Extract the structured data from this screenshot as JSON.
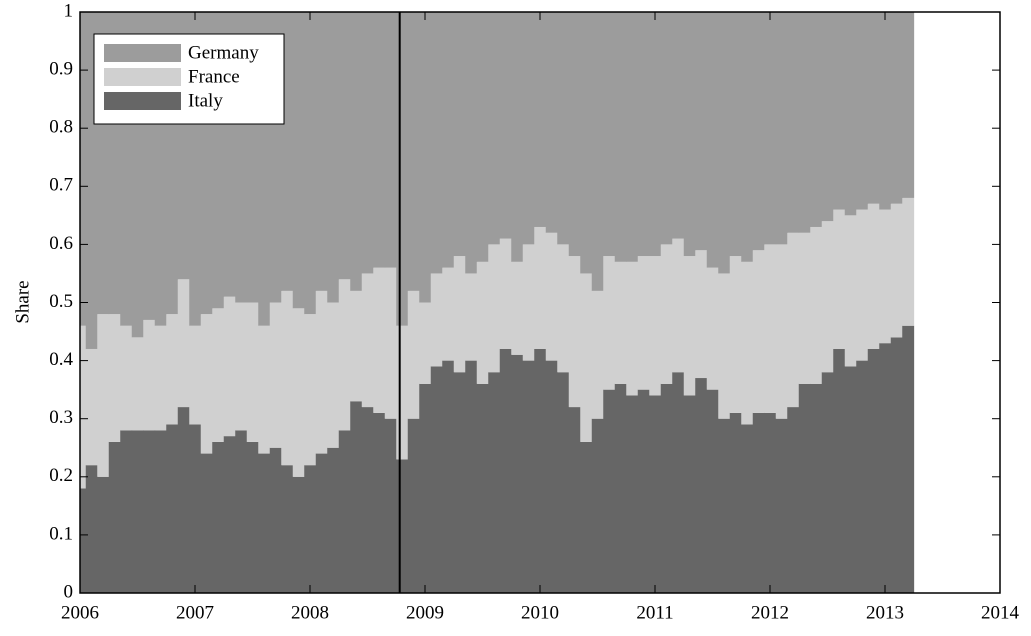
{
  "chart_data": {
    "type": "stacked_bar",
    "y_label": "Share",
    "x": [
      2006.0,
      2006.1,
      2006.2,
      2006.3,
      2006.4,
      2006.5,
      2006.6,
      2006.7,
      2006.8,
      2006.9,
      2007.0,
      2007.1,
      2007.2,
      2007.3,
      2007.4,
      2007.5,
      2007.6,
      2007.7,
      2007.8,
      2007.9,
      2008.0,
      2008.1,
      2008.2,
      2008.3,
      2008.4,
      2008.5,
      2008.6,
      2008.7,
      2008.8,
      2008.9,
      2009.0,
      2009.1,
      2009.2,
      2009.3,
      2009.4,
      2009.5,
      2009.6,
      2009.7,
      2009.8,
      2009.9,
      2010.0,
      2010.1,
      2010.2,
      2010.3,
      2010.4,
      2010.5,
      2010.6,
      2010.7,
      2010.8,
      2010.9,
      2011.0,
      2011.1,
      2011.2,
      2011.3,
      2011.4,
      2011.5,
      2011.6,
      2011.7,
      2011.8,
      2011.9,
      2012.0,
      2012.1,
      2012.2,
      2012.3,
      2012.4,
      2012.5,
      2012.6,
      2012.7,
      2012.8,
      2012.9,
      2013.0,
      2013.1,
      2013.2
    ],
    "series": [
      {
        "name": "Germany",
        "color": "#9c9c9c",
        "values": [
          0.54,
          0.58,
          0.52,
          0.52,
          0.54,
          0.56,
          0.53,
          0.54,
          0.52,
          0.46,
          0.54,
          0.52,
          0.51,
          0.49,
          0.5,
          0.5,
          0.54,
          0.5,
          0.48,
          0.51,
          0.52,
          0.48,
          0.5,
          0.46,
          0.48,
          0.45,
          0.44,
          0.44,
          0.54,
          0.48,
          0.5,
          0.45,
          0.44,
          0.42,
          0.45,
          0.43,
          0.4,
          0.39,
          0.43,
          0.4,
          0.37,
          0.38,
          0.4,
          0.42,
          0.45,
          0.48,
          0.42,
          0.43,
          0.43,
          0.42,
          0.42,
          0.4,
          0.39,
          0.42,
          0.41,
          0.44,
          0.45,
          0.42,
          0.43,
          0.41,
          0.4,
          0.4,
          0.38,
          0.38,
          0.37,
          0.36,
          0.34,
          0.35,
          0.34,
          0.33,
          0.34,
          0.33,
          0.32
        ]
      },
      {
        "name": "France",
        "color": "#d0d0d0",
        "values": [
          0.28,
          0.2,
          0.28,
          0.22,
          0.18,
          0.16,
          0.19,
          0.18,
          0.19,
          0.22,
          0.17,
          0.24,
          0.23,
          0.24,
          0.22,
          0.24,
          0.22,
          0.25,
          0.3,
          0.29,
          0.26,
          0.28,
          0.25,
          0.26,
          0.19,
          0.23,
          0.25,
          0.26,
          0.23,
          0.22,
          0.14,
          0.16,
          0.16,
          0.2,
          0.15,
          0.21,
          0.22,
          0.19,
          0.16,
          0.2,
          0.21,
          0.22,
          0.22,
          0.26,
          0.29,
          0.22,
          0.23,
          0.21,
          0.23,
          0.23,
          0.24,
          0.24,
          0.23,
          0.24,
          0.22,
          0.21,
          0.25,
          0.27,
          0.28,
          0.28,
          0.29,
          0.3,
          0.3,
          0.26,
          0.27,
          0.26,
          0.24,
          0.26,
          0.26,
          0.25,
          0.23,
          0.23,
          0.22
        ]
      },
      {
        "name": "Italy",
        "color": "#666666",
        "values": [
          0.18,
          0.22,
          0.2,
          0.26,
          0.28,
          0.28,
          0.28,
          0.28,
          0.29,
          0.32,
          0.29,
          0.24,
          0.26,
          0.27,
          0.28,
          0.26,
          0.24,
          0.25,
          0.22,
          0.2,
          0.22,
          0.24,
          0.25,
          0.28,
          0.33,
          0.32,
          0.31,
          0.3,
          0.23,
          0.3,
          0.36,
          0.39,
          0.4,
          0.38,
          0.4,
          0.36,
          0.38,
          0.42,
          0.41,
          0.4,
          0.42,
          0.4,
          0.38,
          0.32,
          0.26,
          0.3,
          0.35,
          0.36,
          0.34,
          0.35,
          0.34,
          0.36,
          0.38,
          0.34,
          0.37,
          0.35,
          0.3,
          0.31,
          0.29,
          0.31,
          0.31,
          0.3,
          0.32,
          0.36,
          0.36,
          0.38,
          0.42,
          0.39,
          0.4,
          0.42,
          0.43,
          0.44,
          0.46
        ]
      }
    ],
    "xlim": [
      2006,
      2014
    ],
    "xticks": [
      2006,
      2007,
      2008,
      2009,
      2010,
      2011,
      2012,
      2013,
      2014
    ],
    "ylim": [
      0,
      1
    ],
    "yticks": [
      0,
      0.1,
      0.2,
      0.3,
      0.4,
      0.5,
      0.6,
      0.7,
      0.8,
      0.9,
      1
    ],
    "vline": 2008.78,
    "legend": "upper left"
  }
}
